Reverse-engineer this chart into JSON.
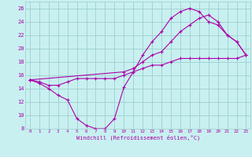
{
  "xlabel": "Windchill (Refroidissement éolien,°C)",
  "bg_color": "#c8f0f0",
  "grid_color": "#9ecece",
  "line_color": "#aa00aa",
  "xlim": [
    -0.5,
    23.5
  ],
  "ylim": [
    8,
    27
  ],
  "yticks": [
    8,
    10,
    12,
    14,
    16,
    18,
    20,
    22,
    24,
    26
  ],
  "xticks": [
    0,
    1,
    2,
    3,
    4,
    5,
    6,
    7,
    8,
    9,
    10,
    11,
    12,
    13,
    14,
    15,
    16,
    17,
    18,
    19,
    20,
    21,
    22,
    23
  ],
  "curve1_x": [
    0,
    1,
    2,
    3,
    4,
    5,
    6,
    7,
    8,
    9,
    10,
    11,
    12,
    13,
    14,
    15,
    16,
    17,
    18,
    19,
    20,
    21,
    22,
    23
  ],
  "curve1_y": [
    15.3,
    14.8,
    14.0,
    13.0,
    12.3,
    9.5,
    8.5,
    8.0,
    8.0,
    9.5,
    14.2,
    16.5,
    19.0,
    21.0,
    22.5,
    24.5,
    25.5,
    26.0,
    25.5,
    24.0,
    23.5,
    22.0,
    21.0,
    19.0
  ],
  "curve2_x": [
    0,
    1,
    2,
    3,
    4,
    5,
    6,
    7,
    8,
    9,
    10,
    11,
    12,
    13,
    14,
    15,
    16,
    17,
    18,
    19,
    20,
    21,
    22,
    23
  ],
  "curve2_y": [
    15.3,
    15.0,
    14.5,
    14.5,
    15.0,
    15.5,
    15.5,
    15.5,
    15.5,
    15.5,
    16.0,
    16.5,
    17.0,
    17.5,
    17.5,
    18.0,
    18.5,
    18.5,
    18.5,
    18.5,
    18.5,
    18.5,
    18.5,
    19.0
  ],
  "curve3_x": [
    0,
    10,
    11,
    12,
    13,
    14,
    15,
    16,
    17,
    18,
    19,
    20,
    21,
    22,
    23
  ],
  "curve3_y": [
    15.3,
    16.5,
    17.0,
    18.0,
    19.0,
    19.5,
    21.0,
    22.5,
    23.5,
    24.5,
    25.0,
    24.0,
    22.0,
    21.0,
    19.0
  ]
}
